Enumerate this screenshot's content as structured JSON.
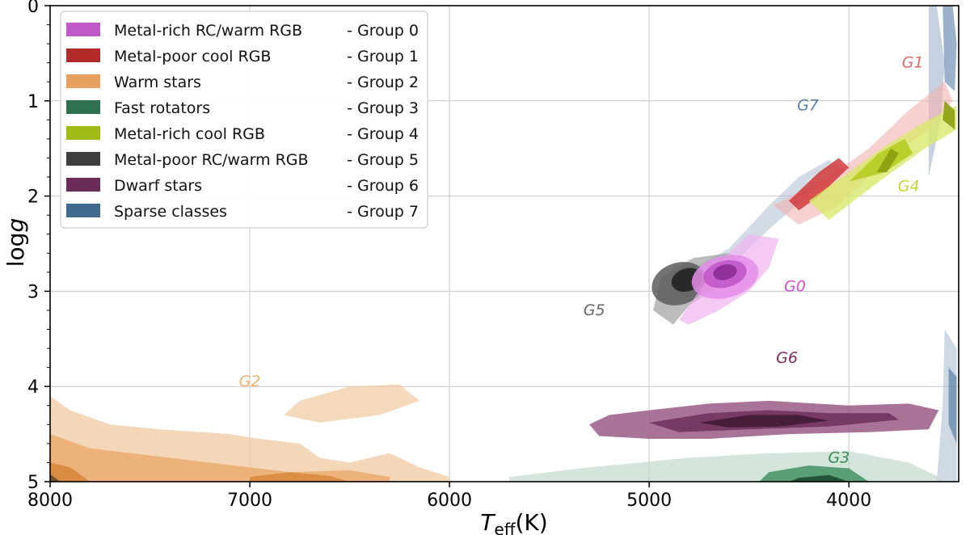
{
  "chart_data": {
    "type": "contour",
    "title": "",
    "xlabel_main": "T",
    "xlabel_sub": "eff",
    "xlabel_unit": "(K)",
    "ylabel_prefix": "log",
    "ylabel_italic": "g",
    "xlim": [
      8000,
      3450
    ],
    "ylim": [
      0,
      5
    ],
    "x_ticks": [
      8000,
      7000,
      6000,
      5000,
      4000
    ],
    "y_ticks": [
      0,
      1,
      2,
      3,
      4,
      5
    ],
    "grid": true,
    "legend_position": "top-left",
    "series": [
      {
        "name": "Metal-rich RC/warm RGB",
        "group": "- Group 0",
        "color": "#c058c8",
        "annotation": "G0",
        "annotation_at": [
          4270,
          3.0
        ]
      },
      {
        "name": "Metal-poor cool RGB",
        "group": "- Group 1",
        "color": "#b22a2a",
        "annotation": "G1",
        "annotation_at": [
          3680,
          0.65
        ]
      },
      {
        "name": "Warm stars",
        "group": "- Group 2",
        "color": "#e8a05e",
        "annotation": "G2",
        "annotation_at": [
          7000,
          4.0
        ]
      },
      {
        "name": "Fast rotators",
        "group": "- Group 3",
        "color": "#2e7050",
        "annotation": "G3",
        "annotation_at": [
          4050,
          4.8
        ]
      },
      {
        "name": "Metal-rich cool RGB",
        "group": "- Group 4",
        "color": "#a2ba14",
        "annotation": "G4",
        "annotation_at": [
          3700,
          1.95
        ]
      },
      {
        "name": "Metal-poor RC/warm RGB",
        "group": "- Group 5",
        "color": "#3e3e3e",
        "annotation": "G5",
        "annotation_at": [
          5275,
          3.25
        ]
      },
      {
        "name": "Dwarf stars",
        "group": "- Group 6",
        "color": "#6a2c58",
        "annotation": "G6",
        "annotation_at": [
          4310,
          3.75
        ]
      },
      {
        "name": "Sparse classes",
        "group": "- Group 7",
        "color": "#3f6a8e",
        "annotation": "G7",
        "annotation_at": [
          4205,
          1.1
        ]
      }
    ],
    "annotation_colors": [
      "#d84dd4",
      "#e06a6a",
      "#f0b070",
      "#3a8c5a",
      "#c6d836",
      "#666666",
      "#7a2a5e",
      "#5a7fa8"
    ]
  }
}
